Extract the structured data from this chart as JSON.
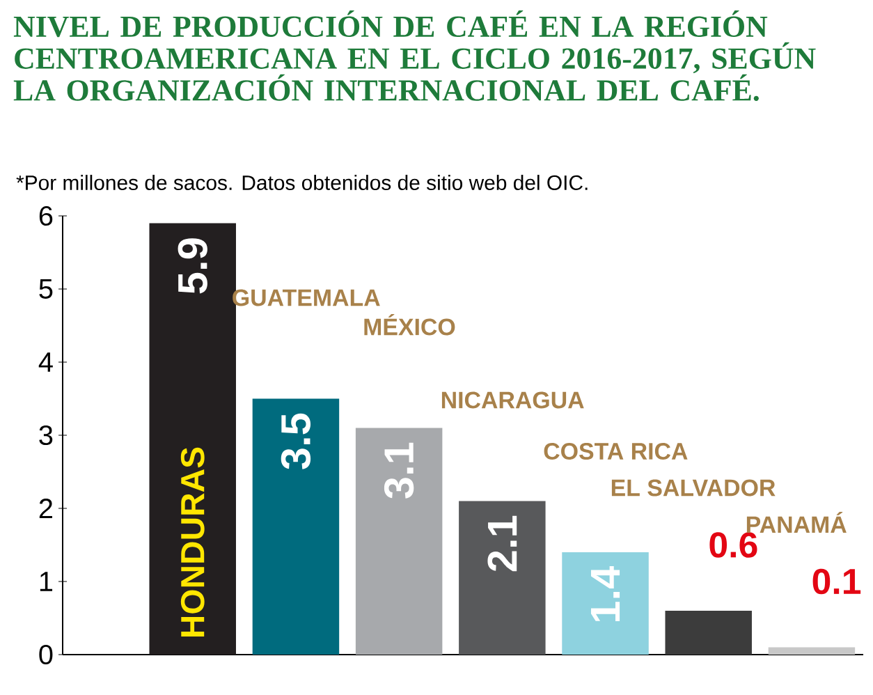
{
  "chart_data": {
    "type": "bar",
    "title": "NIVEL DE PRODUCCIÓN DE CAFÉ EN LA REGIÓN CENTROAMERICANA EN EL CICLO 2016-2017, SEGÚN LA ORGANIZACIÓN INTERNACIONAL DEL CAFÉ.",
    "subtitle": "*Por millones de sacos. Datos obtenidos de sitio web del OIC.",
    "categories": [
      "HONDURAS",
      "GUATEMALA",
      "MÉXICO",
      "NICARAGUA",
      "COSTA RICA",
      "EL SALVADOR",
      "PANAMÁ"
    ],
    "values": [
      5.9,
      3.5,
      3.1,
      2.1,
      1.4,
      0.6,
      0.1
    ],
    "colors": [
      "#231f20",
      "#006b7e",
      "#a7a9ac",
      "#58595b",
      "#8ed2df",
      "#3c3c3c",
      "#c8c8c8"
    ],
    "ylim": [
      0,
      6
    ],
    "yticks": [
      0,
      1,
      2,
      3,
      4,
      5,
      6
    ],
    "data_labels": true,
    "grid": false
  }
}
